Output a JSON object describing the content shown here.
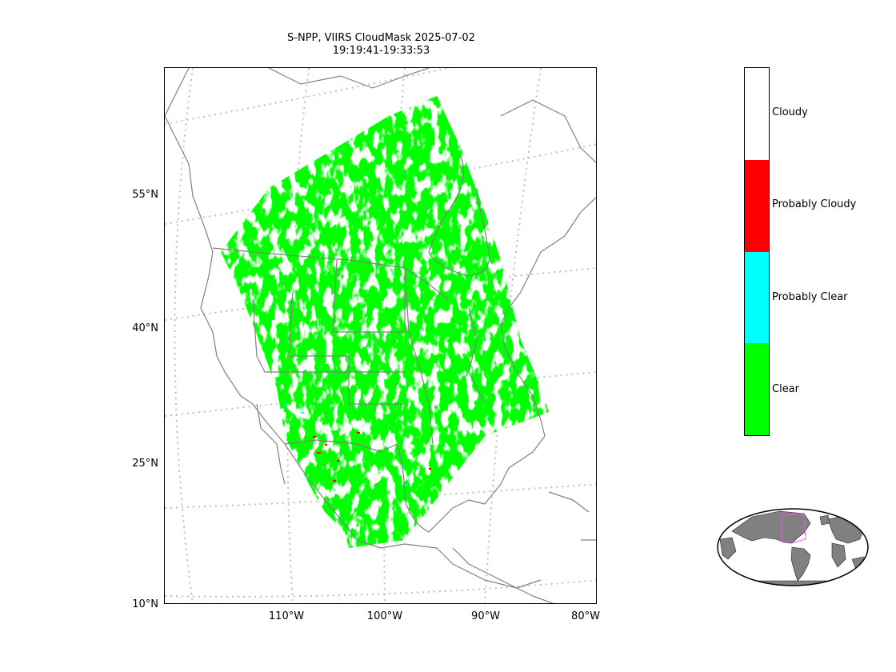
{
  "title": {
    "line1": "S-NPP, VIIRS CloudMask 2025-07-02",
    "line2": "19:19:41-19:33:53"
  },
  "map": {
    "lat_labels": [
      "55°N",
      "40°N",
      "25°N",
      "10°N"
    ],
    "lon_labels": [
      "110°W",
      "100°W",
      "90°W",
      "80°W"
    ],
    "colors": {
      "coastline": "#808080",
      "gridline": "#bdbdbd",
      "clear": "#00ff00",
      "probably_clear": "#00ffff",
      "probably_cloudy": "#ff0000",
      "cloudy": "#ffffff"
    }
  },
  "legend": {
    "items": [
      {
        "label": "Cloudy",
        "color": "#ffffff"
      },
      {
        "label": "Probably Cloudy",
        "color": "#ff0000"
      },
      {
        "label": "Probably Clear",
        "color": "#00ffff"
      },
      {
        "label": "Clear",
        "color": "#00ff00"
      }
    ]
  },
  "inset_globe": {
    "land_color": "#808080",
    "swath_outline_color": "#ff44ff"
  }
}
